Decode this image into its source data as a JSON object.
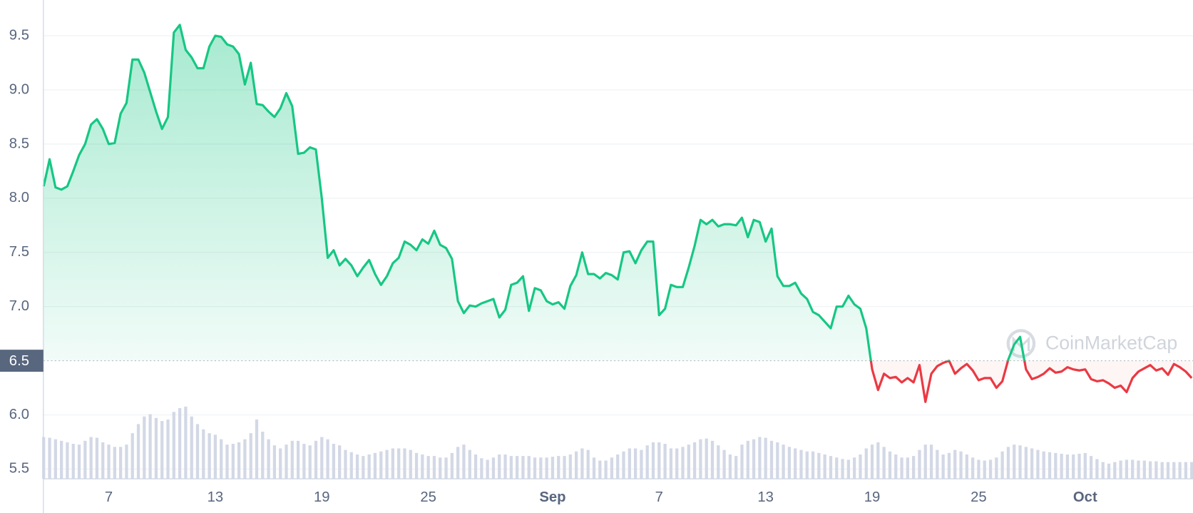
{
  "chart_data": {
    "type": "baseline-line",
    "watermark": "CoinMarketCap",
    "color": "#16c784",
    "down_color": "#ea3943",
    "volume_color": "#d3d8e6",
    "grid": true,
    "ylim": [
      5.41,
      9.83
    ],
    "yticks": [
      {
        "value": 5.5,
        "label": "5.5"
      },
      {
        "value": 6,
        "label": "6.0"
      },
      {
        "value": 7,
        "label": "7.0"
      },
      {
        "value": 7.5,
        "label": "7.5"
      },
      {
        "value": 8,
        "label": "8.0"
      },
      {
        "value": 8.5,
        "label": "8.5"
      },
      {
        "value": 9,
        "label": "9.0"
      },
      {
        "value": 9.5,
        "label": "9.5"
      }
    ],
    "baseline": {
      "value": 6.5,
      "label": "6.5"
    },
    "categories": [
      null,
      null,
      null,
      null,
      null,
      null,
      null,
      null,
      null,
      null,
      null,
      "7",
      null,
      null,
      null,
      null,
      null,
      null,
      null,
      null,
      null,
      null,
      null,
      null,
      null,
      null,
      null,
      null,
      null,
      "13",
      null,
      null,
      null,
      null,
      null,
      null,
      null,
      null,
      null,
      null,
      null,
      null,
      null,
      null,
      null,
      null,
      null,
      "19",
      null,
      null,
      null,
      null,
      null,
      null,
      null,
      null,
      null,
      null,
      null,
      null,
      null,
      null,
      null,
      null,
      null,
      "25",
      null,
      null,
      null,
      null,
      null,
      null,
      null,
      null,
      null,
      null,
      null,
      null,
      null,
      null,
      null,
      null,
      null,
      null,
      null,
      null,
      "Sep",
      null,
      null,
      null,
      null,
      null,
      null,
      null,
      null,
      null,
      null,
      null,
      null,
      null,
      null,
      null,
      null,
      null,
      "7",
      null,
      null,
      null,
      null,
      null,
      null,
      null,
      null,
      null,
      null,
      null,
      null,
      null,
      null,
      null,
      null,
      null,
      "13",
      null,
      null,
      null,
      null,
      null,
      null,
      null,
      null,
      null,
      null,
      null,
      null,
      null,
      null,
      null,
      null,
      null,
      "19",
      null,
      null,
      null,
      null,
      null,
      null,
      null,
      null,
      null,
      null,
      null,
      null,
      null,
      null,
      null,
      null,
      null,
      "25",
      null,
      null,
      null,
      null,
      null,
      null,
      null,
      null,
      null,
      null,
      null,
      null,
      null,
      null,
      null,
      null,
      null,
      "Oct",
      null,
      null,
      null,
      null,
      null,
      null,
      null,
      null,
      null,
      null,
      null,
      null,
      null,
      null,
      null,
      null,
      null,
      null
    ],
    "values": [
      8.11,
      8.36,
      8.1,
      8.08,
      8.11,
      8.25,
      8.4,
      8.5,
      8.68,
      8.73,
      8.64,
      8.5,
      8.51,
      8.78,
      8.88,
      9.28,
      9.28,
      9.16,
      8.98,
      8.8,
      8.64,
      8.75,
      9.53,
      9.6,
      9.37,
      9.3,
      9.2,
      9.2,
      9.4,
      9.5,
      9.49,
      9.42,
      9.4,
      9.33,
      9.05,
      9.25,
      8.87,
      8.86,
      8.8,
      8.75,
      8.83,
      8.97,
      8.85,
      8.41,
      8.42,
      8.47,
      8.45,
      8.0,
      7.45,
      7.52,
      7.38,
      7.44,
      7.38,
      7.28,
      7.36,
      7.43,
      7.3,
      7.2,
      7.28,
      7.4,
      7.45,
      7.6,
      7.57,
      7.52,
      7.62,
      7.58,
      7.7,
      7.57,
      7.54,
      7.44,
      7.05,
      6.94,
      7.01,
      7.0,
      7.03,
      7.05,
      7.07,
      6.9,
      6.97,
      7.2,
      7.22,
      7.28,
      6.96,
      7.17,
      7.15,
      7.05,
      7.02,
      7.04,
      6.98,
      7.19,
      7.29,
      7.5,
      7.3,
      7.3,
      7.26,
      7.31,
      7.29,
      7.25,
      7.5,
      7.51,
      7.4,
      7.52,
      7.6,
      7.6,
      6.92,
      6.98,
      7.2,
      7.18,
      7.18,
      7.36,
      7.56,
      7.8,
      7.76,
      7.8,
      7.74,
      7.76,
      7.76,
      7.75,
      7.82,
      7.64,
      7.8,
      7.78,
      7.6,
      7.72,
      7.28,
      7.19,
      7.19,
      7.22,
      7.12,
      7.07,
      6.95,
      6.92,
      6.86,
      6.8,
      7.0,
      7.0,
      7.1,
      7.02,
      6.98,
      6.8,
      6.42,
      6.23,
      6.38,
      6.34,
      6.35,
      6.3,
      6.34,
      6.3,
      6.46,
      6.12,
      6.38,
      6.45,
      6.48,
      6.5,
      6.38,
      6.43,
      6.47,
      6.41,
      6.32,
      6.34,
      6.34,
      6.25,
      6.31,
      6.51,
      6.65,
      6.72,
      6.42,
      6.33,
      6.35,
      6.38,
      6.43,
      6.39,
      6.4,
      6.44,
      6.42,
      6.41,
      6.42,
      6.33,
      6.31,
      6.32,
      6.29,
      6.25,
      6.27,
      6.21,
      6.34,
      6.4,
      6.43,
      6.46,
      6.41,
      6.43,
      6.37,
      6.47,
      6.44,
      6.4,
      6.34
    ],
    "volume": [
      55,
      54,
      52,
      50,
      48,
      46,
      45,
      50,
      55,
      54,
      48,
      45,
      42,
      42,
      45,
      60,
      72,
      82,
      85,
      80,
      76,
      78,
      88,
      93,
      95,
      82,
      72,
      65,
      60,
      58,
      52,
      45,
      46,
      48,
      52,
      60,
      78,
      62,
      52,
      44,
      40,
      45,
      50,
      50,
      46,
      44,
      50,
      55,
      52,
      46,
      44,
      38,
      35,
      32,
      30,
      32,
      34,
      36,
      38,
      40,
      40,
      40,
      38,
      34,
      32,
      30,
      30,
      28,
      28,
      34,
      42,
      45,
      38,
      32,
      27,
      25,
      28,
      32,
      32,
      30,
      30,
      30,
      30,
      28,
      28,
      28,
      29,
      30,
      30,
      32,
      36,
      40,
      38,
      28,
      24,
      24,
      28,
      32,
      36,
      40,
      40,
      38,
      44,
      48,
      48,
      46,
      40,
      40,
      42,
      45,
      48,
      52,
      53,
      50,
      44,
      38,
      32,
      30,
      45,
      50,
      52,
      55,
      54,
      50,
      48,
      45,
      42,
      40,
      38,
      36,
      36,
      34,
      32,
      30,
      28,
      26,
      25,
      28,
      32,
      40,
      45,
      48,
      42,
      36,
      32,
      28,
      28,
      30,
      38,
      45,
      45,
      38,
      32,
      34,
      38,
      36,
      32,
      28,
      25,
      24,
      25,
      28,
      36,
      42,
      45,
      44,
      42,
      40,
      38,
      36,
      35,
      34,
      33,
      32,
      32,
      33,
      34,
      30,
      26,
      22,
      20,
      22,
      24,
      25,
      25,
      24,
      24,
      23,
      23,
      22,
      22,
      22,
      22,
      22,
      22
    ]
  }
}
